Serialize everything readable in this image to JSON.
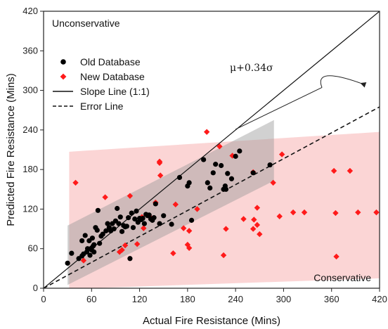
{
  "chart_data": {
    "type": "scatter",
    "xlabel": "Actual Fire Resistance (Mins)",
    "ylabel": "Predicted Fire Resistance (Mins)",
    "xlim": [
      0,
      420
    ],
    "ylim": [
      0,
      420
    ],
    "xticks": [
      0,
      60,
      120,
      180,
      240,
      300,
      360,
      420
    ],
    "yticks": [
      0,
      60,
      120,
      180,
      240,
      300,
      360,
      420
    ],
    "grid": false,
    "legend_position": "top-left",
    "annotations": {
      "top_left": "Unconservative",
      "bottom_right": "Conservative",
      "error_label": "μ+0.34σ"
    },
    "colors": {
      "old": "#000000",
      "new": "#ff1a1a",
      "old_band": "#999999",
      "new_band": "#f7b3b3"
    },
    "series": [
      {
        "name": "Old Database",
        "marker": "circle",
        "points": [
          [
            30,
            38
          ],
          [
            35,
            53
          ],
          [
            44,
            45
          ],
          [
            48,
            49
          ],
          [
            48,
            72
          ],
          [
            50,
            52
          ],
          [
            52,
            80
          ],
          [
            54,
            55
          ],
          [
            55,
            60
          ],
          [
            57,
            72
          ],
          [
            58,
            50
          ],
          [
            60,
            61
          ],
          [
            60,
            58
          ],
          [
            61,
            76
          ],
          [
            62,
            64
          ],
          [
            63,
            66
          ],
          [
            63,
            55
          ],
          [
            65,
            92
          ],
          [
            67,
            88
          ],
          [
            68,
            118
          ],
          [
            70,
            68
          ],
          [
            72,
            79
          ],
          [
            74,
            82
          ],
          [
            78,
            87
          ],
          [
            80,
            98
          ],
          [
            82,
            92
          ],
          [
            84,
            87
          ],
          [
            86,
            98
          ],
          [
            88,
            90
          ],
          [
            90,
            102
          ],
          [
            92,
            121
          ],
          [
            94,
            98
          ],
          [
            96,
            108
          ],
          [
            98,
            86
          ],
          [
            100,
            95
          ],
          [
            102,
            93
          ],
          [
            104,
            94
          ],
          [
            106,
            107
          ],
          [
            108,
            45
          ],
          [
            110,
            114
          ],
          [
            112,
            92
          ],
          [
            114,
            105
          ],
          [
            116,
            117
          ],
          [
            118,
            100
          ],
          [
            120,
            106
          ],
          [
            122,
            104
          ],
          [
            124,
            106
          ],
          [
            126,
            98
          ],
          [
            128,
            112
          ],
          [
            130,
            110
          ],
          [
            132,
            111
          ],
          [
            134,
            105
          ],
          [
            136,
            103
          ],
          [
            138,
            107
          ],
          [
            140,
            128
          ],
          [
            145,
            98
          ],
          [
            150,
            110
          ],
          [
            160,
            97
          ],
          [
            170,
            168
          ],
          [
            180,
            155
          ],
          [
            182,
            160
          ],
          [
            185,
            103
          ],
          [
            200,
            195
          ],
          [
            205,
            160
          ],
          [
            208,
            152
          ],
          [
            212,
            175
          ],
          [
            215,
            188
          ],
          [
            222,
            186
          ],
          [
            225,
            150
          ],
          [
            227,
            155
          ],
          [
            228,
            150
          ],
          [
            230,
            174
          ],
          [
            235,
            166
          ],
          [
            240,
            200
          ],
          [
            245,
            208
          ],
          [
            262,
            175
          ],
          [
            283,
            187
          ]
        ]
      },
      {
        "name": "New Database",
        "marker": "diamond",
        "points": [
          [
            40,
            160
          ],
          [
            50,
            42
          ],
          [
            77,
            138
          ],
          [
            95,
            55
          ],
          [
            98,
            58
          ],
          [
            102,
            65
          ],
          [
            108,
            140
          ],
          [
            117,
            67
          ],
          [
            123,
            108
          ],
          [
            125,
            91
          ],
          [
            133,
            108
          ],
          [
            140,
            130
          ],
          [
            145,
            192
          ],
          [
            146,
            171
          ],
          [
            145,
            190
          ],
          [
            162,
            53
          ],
          [
            165,
            127
          ],
          [
            175,
            91
          ],
          [
            180,
            66
          ],
          [
            182,
            61
          ],
          [
            182,
            87
          ],
          [
            192,
            120
          ],
          [
            204,
            237
          ],
          [
            220,
            215
          ],
          [
            225,
            50
          ],
          [
            228,
            90
          ],
          [
            236,
            201
          ],
          [
            250,
            105
          ],
          [
            262,
            176
          ],
          [
            263,
            104
          ],
          [
            267,
            96
          ],
          [
            267,
            122
          ],
          [
            270,
            82
          ],
          [
            287,
            160
          ],
          [
            295,
            109
          ],
          [
            298,
            203
          ],
          [
            312,
            115
          ],
          [
            326,
            115
          ],
          [
            363,
            178
          ],
          [
            383,
            178
          ],
          [
            365,
            114
          ],
          [
            366,
            48
          ],
          [
            393,
            115
          ],
          [
            416,
            115
          ],
          [
            262,
            90
          ]
        ]
      },
      {
        "name": "Slope Line (1:1)",
        "line_style": "solid",
        "points": [
          [
            0,
            0
          ],
          [
            420,
            420
          ]
        ]
      },
      {
        "name": "Error Line",
        "line_style": "dashed",
        "points": [
          [
            0,
            0
          ],
          [
            420,
            275
          ]
        ]
      }
    ],
    "bands": [
      {
        "series": "New Database",
        "polygon": [
          [
            32,
            207
          ],
          [
            420,
            237
          ],
          [
            420,
            15
          ],
          [
            32,
            -1
          ]
        ]
      },
      {
        "series": "Old Database",
        "polygon": [
          [
            30,
            95
          ],
          [
            288,
            255
          ],
          [
            288,
            163
          ],
          [
            30,
            5
          ]
        ]
      }
    ],
    "error_arrow": {
      "label_at": [
        300,
        330
      ],
      "from": [
        348,
        330
      ],
      "to": [
        240,
        241
      ]
    }
  }
}
